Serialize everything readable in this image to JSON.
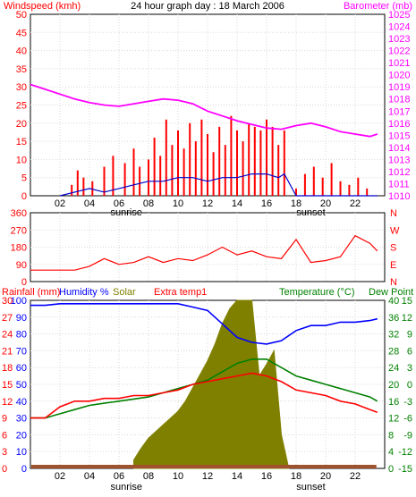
{
  "header": {
    "title": "24 hour graph day : 18 March 2006",
    "left_label": "Windspeed (kmh)",
    "right_label": "Barometer (mb)"
  },
  "bottom_header": {
    "rainfall": "Rainfall (mm)",
    "humidity": "Humidity %",
    "solar": "Solar",
    "extra": "Extra temp1",
    "temperature": "Temperature (°C)",
    "dew": "Dew Point"
  },
  "x_axis": {
    "hours": [
      "02",
      "04",
      "06",
      "08",
      "10",
      "12",
      "14",
      "16",
      "18",
      "20",
      "22"
    ],
    "sunrise_label": "sunrise",
    "sunset_label": "sunset"
  },
  "colors": {
    "wind": "#ff0000",
    "gust": "#0000cc",
    "barometer": "#ff00ff",
    "direction": "#ff0000",
    "humidity": "#0000ff",
    "solar": "#808000",
    "temperature": "#008000",
    "dew": "#ff0000",
    "rain": "#a0522d"
  },
  "chart_data": [
    {
      "type": "line",
      "name": "wind-barometer",
      "x_range": [
        0,
        24
      ],
      "left_axis": {
        "label": "Windspeed (kmh)",
        "ticks": [
          "0",
          "5",
          "10",
          "15",
          "20",
          "25",
          "30",
          "35",
          "40",
          "45",
          "50"
        ],
        "ylim": [
          0,
          50
        ]
      },
      "right_axis": {
        "label": "Barometer (mb)",
        "ticks": [
          "1010",
          "1011",
          "1012",
          "1013",
          "1014",
          "1015",
          "1016",
          "1017",
          "1018",
          "1019",
          "1020",
          "1021",
          "1022",
          "1023",
          "1024",
          "1025"
        ],
        "ylim": [
          1010,
          1025
        ]
      },
      "barometer": {
        "x": [
          0,
          1,
          2,
          3,
          4,
          5,
          6,
          7,
          8,
          9,
          10,
          11,
          12,
          13,
          14,
          15,
          16,
          17,
          18,
          19,
          20,
          21,
          22,
          23,
          23.5
        ],
        "y": [
          1019.2,
          1018.8,
          1018.4,
          1018.0,
          1017.7,
          1017.5,
          1017.4,
          1017.6,
          1017.8,
          1018.0,
          1017.9,
          1017.6,
          1017.0,
          1016.6,
          1016.2,
          1015.9,
          1015.6,
          1015.5,
          1015.8,
          1016.0,
          1015.7,
          1015.3,
          1015.1,
          1014.9,
          1015.1
        ]
      },
      "wind_bars": {
        "x": [
          2.8,
          3.2,
          3.6,
          4.2,
          5.0,
          5.6,
          6.4,
          7.0,
          7.4,
          8.0,
          8.4,
          8.8,
          9.2,
          9.6,
          10.0,
          10.4,
          10.8,
          11.2,
          11.6,
          12.0,
          12.4,
          12.8,
          13.2,
          13.6,
          14.0,
          14.4,
          14.8,
          15.2,
          15.6,
          16.0,
          16.4,
          16.8,
          17.2,
          18.0,
          18.6,
          19.2,
          19.8,
          20.4,
          21.0,
          21.6,
          22.2,
          22.8
        ],
        "y": [
          3,
          7,
          5,
          4,
          8,
          11,
          9,
          13,
          8,
          10,
          16,
          11,
          21,
          14,
          18,
          13,
          20,
          15,
          21,
          17,
          12,
          19,
          14,
          22,
          18,
          15,
          20,
          19,
          18,
          21,
          19,
          14,
          18,
          2,
          6,
          8,
          5,
          9,
          4,
          3,
          5,
          2
        ]
      },
      "gust": {
        "x": [
          2.0,
          3.0,
          4.0,
          5.0,
          6.0,
          7.0,
          8.0,
          9.0,
          10.0,
          11.0,
          12.0,
          13.0,
          14.0,
          15.0,
          16.0,
          16.8,
          17.2,
          18.0,
          23.5
        ],
        "y": [
          0,
          1,
          2,
          1,
          2,
          3,
          4,
          4,
          5,
          5,
          4,
          5,
          5,
          6,
          6,
          5,
          6,
          0,
          0
        ]
      }
    },
    {
      "type": "line",
      "name": "wind-direction",
      "x_range": [
        0,
        24
      ],
      "left_axis": {
        "ticks": [
          "0",
          "90",
          "180",
          "270",
          "360"
        ],
        "ylim": [
          0,
          360
        ]
      },
      "right_axis": {
        "ticks": [
          "N",
          "W",
          "S",
          "E",
          "N"
        ]
      },
      "direction": {
        "x": [
          0,
          1,
          2,
          3,
          4,
          5,
          6,
          7,
          8,
          9,
          10,
          11,
          12,
          13,
          14,
          15,
          16,
          17,
          18,
          19,
          20,
          21,
          22,
          23,
          23.5
        ],
        "y": [
          60,
          60,
          60,
          60,
          80,
          120,
          90,
          100,
          130,
          100,
          120,
          110,
          140,
          180,
          140,
          160,
          130,
          120,
          220,
          100,
          110,
          130,
          240,
          200,
          160
        ]
      }
    },
    {
      "type": "line",
      "name": "temperature-humidity-solar",
      "x_range": [
        0,
        24
      ],
      "humidity_axis": {
        "label": "Humidity %",
        "ticks": [
          "0",
          "10",
          "20",
          "30",
          "40",
          "50",
          "60",
          "70",
          "80",
          "90",
          "100"
        ],
        "ylim": [
          0,
          100
        ]
      },
      "rainfall_axis": {
        "label": "Rainfall (mm)",
        "ticks": [
          "0",
          "3",
          "6",
          "9",
          "12",
          "15",
          "18",
          "21",
          "24",
          "27",
          "30"
        ],
        "ylim": [
          0,
          30
        ]
      },
      "temperature_axis": {
        "label": "Temperature (°C)",
        "ticks": [
          "0",
          "4",
          "8",
          "12",
          "16",
          "20",
          "24",
          "28",
          "32",
          "36",
          "40"
        ],
        "ylim": [
          0,
          40
        ]
      },
      "dew_axis": {
        "label": "Dew Point",
        "ticks": [
          "-15",
          "-12",
          "-9",
          "-6",
          "-3",
          "0",
          "3",
          "6",
          "9",
          "12",
          "15"
        ],
        "ylim": [
          -15,
          15
        ]
      },
      "humidity": {
        "x": [
          0,
          1,
          2,
          3,
          4,
          5,
          6,
          7,
          8,
          9,
          10,
          11,
          12,
          13,
          14,
          15,
          16,
          17,
          18,
          19,
          20,
          21,
          22,
          23,
          23.5
        ],
        "y": [
          97,
          97,
          98,
          98,
          98,
          98,
          98,
          98,
          98,
          98,
          98,
          96,
          94,
          86,
          78,
          75,
          74,
          76,
          82,
          85,
          85,
          87,
          87,
          88,
          89
        ]
      },
      "temperature": {
        "x": [
          0,
          1,
          2,
          3,
          4,
          5,
          6,
          7,
          8,
          9,
          10,
          11,
          12,
          13,
          14,
          15,
          16,
          17,
          18,
          19,
          20,
          21,
          22,
          23,
          23.5
        ],
        "y": [
          12,
          12,
          13,
          14,
          15,
          15.5,
          16,
          16.5,
          17,
          18,
          19,
          20,
          21,
          23,
          25,
          26,
          26,
          24,
          22,
          21,
          20,
          19,
          18,
          17,
          16
        ]
      },
      "dew_point": {
        "x": [
          0,
          1,
          2,
          3,
          4,
          5,
          6,
          7,
          8,
          9,
          10,
          11,
          12,
          13,
          14,
          15,
          16,
          17,
          18,
          19,
          20,
          21,
          22,
          23,
          23.5
        ],
        "y": [
          -6,
          -6,
          -4,
          -3,
          -3,
          -2.5,
          -2.5,
          -2,
          -2,
          -1.5,
          -1,
          0,
          0.5,
          1,
          1.5,
          2,
          1.5,
          0.5,
          -1,
          -1.5,
          -2,
          -3,
          -3.5,
          -4.5,
          -5
        ]
      },
      "solar": {
        "x": [
          7.0,
          7.5,
          8.0,
          8.5,
          9.0,
          9.5,
          10.0,
          10.5,
          11.0,
          11.5,
          12.0,
          12.5,
          13.0,
          13.5,
          14.0,
          14.5,
          15.0,
          15.5,
          16.0,
          16.5,
          17.0,
          17.5
        ],
        "y": [
          0.05,
          0.12,
          0.18,
          0.22,
          0.26,
          0.3,
          0.34,
          0.4,
          0.48,
          0.56,
          0.64,
          0.74,
          0.86,
          0.95,
          1.0,
          1.0,
          1.0,
          0.55,
          0.62,
          0.7,
          0.2,
          0.0
        ]
      },
      "rain_bar": {
        "x": [
          0,
          23.5
        ],
        "y": 0
      }
    }
  ]
}
